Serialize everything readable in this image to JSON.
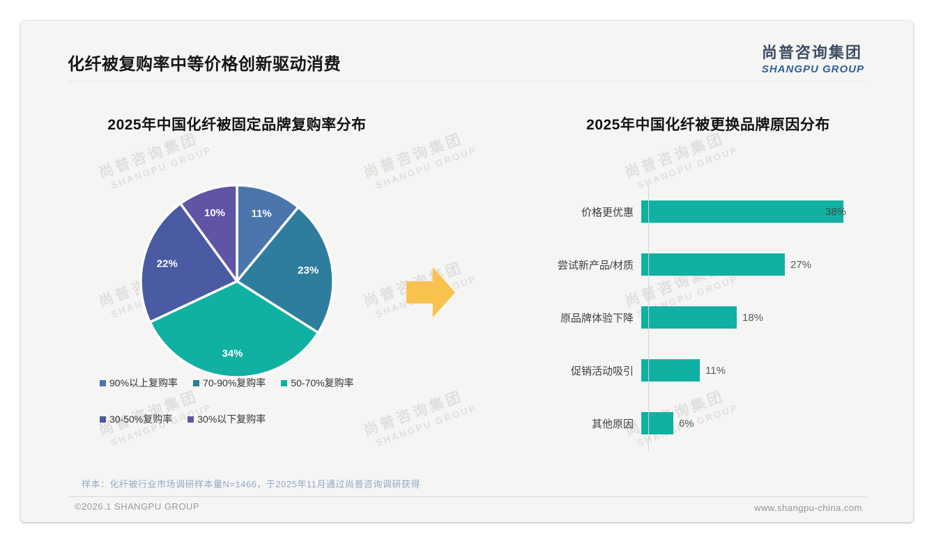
{
  "page": {
    "title": "化纤被复购率中等价格创新驱动消费",
    "logo": {
      "cn": "尚普咨询集团",
      "en": "SHANGPU GROUP"
    },
    "watermark": {
      "cn": "尚普咨询集团",
      "en": "SHANGPU GROUP"
    },
    "sample_note": "样本：化纤被行业市场调研样本量N=1466，于2025年11月通过尚普咨询调研获得",
    "footer": {
      "copyright": "©2026.1 SHANGPU GROUP",
      "website": "www.shangpu-china.com"
    }
  },
  "arrow_color": "#f9c24e",
  "chart_data": [
    {
      "type": "pie",
      "title": "2025年中国化纤被固定品牌复购率分布",
      "categories": [
        "90%以上复购率",
        "70-90%复购率",
        "50-70%复购率",
        "30-50%复购率",
        "30%以下复购率"
      ],
      "values": [
        11,
        23,
        34,
        22,
        10
      ],
      "labels": [
        "11%",
        "23%",
        "34%",
        "22%",
        "10%"
      ],
      "colors": [
        "#4a76ad",
        "#2e7d9c",
        "#10b0a2",
        "#4a5aa3",
        "#6054a6"
      ],
      "unit": "%",
      "start_angle_deg": 0,
      "direction": "clockwise",
      "legend_position": "bottom"
    },
    {
      "type": "bar",
      "title": "2025年中国化纤被更换品牌原因分布",
      "orientation": "horizontal",
      "categories": [
        "价格更优惠",
        "尝试新产品/材质",
        "原品牌体验下降",
        "促销活动吸引",
        "其他原因"
      ],
      "values": [
        38,
        27,
        18,
        11,
        6
      ],
      "value_labels": [
        "38%",
        "27%",
        "18%",
        "11%",
        "6%"
      ],
      "bar_color": "#10b0a2",
      "xlim": [
        0,
        40
      ],
      "grid": false,
      "unit": "%"
    }
  ]
}
